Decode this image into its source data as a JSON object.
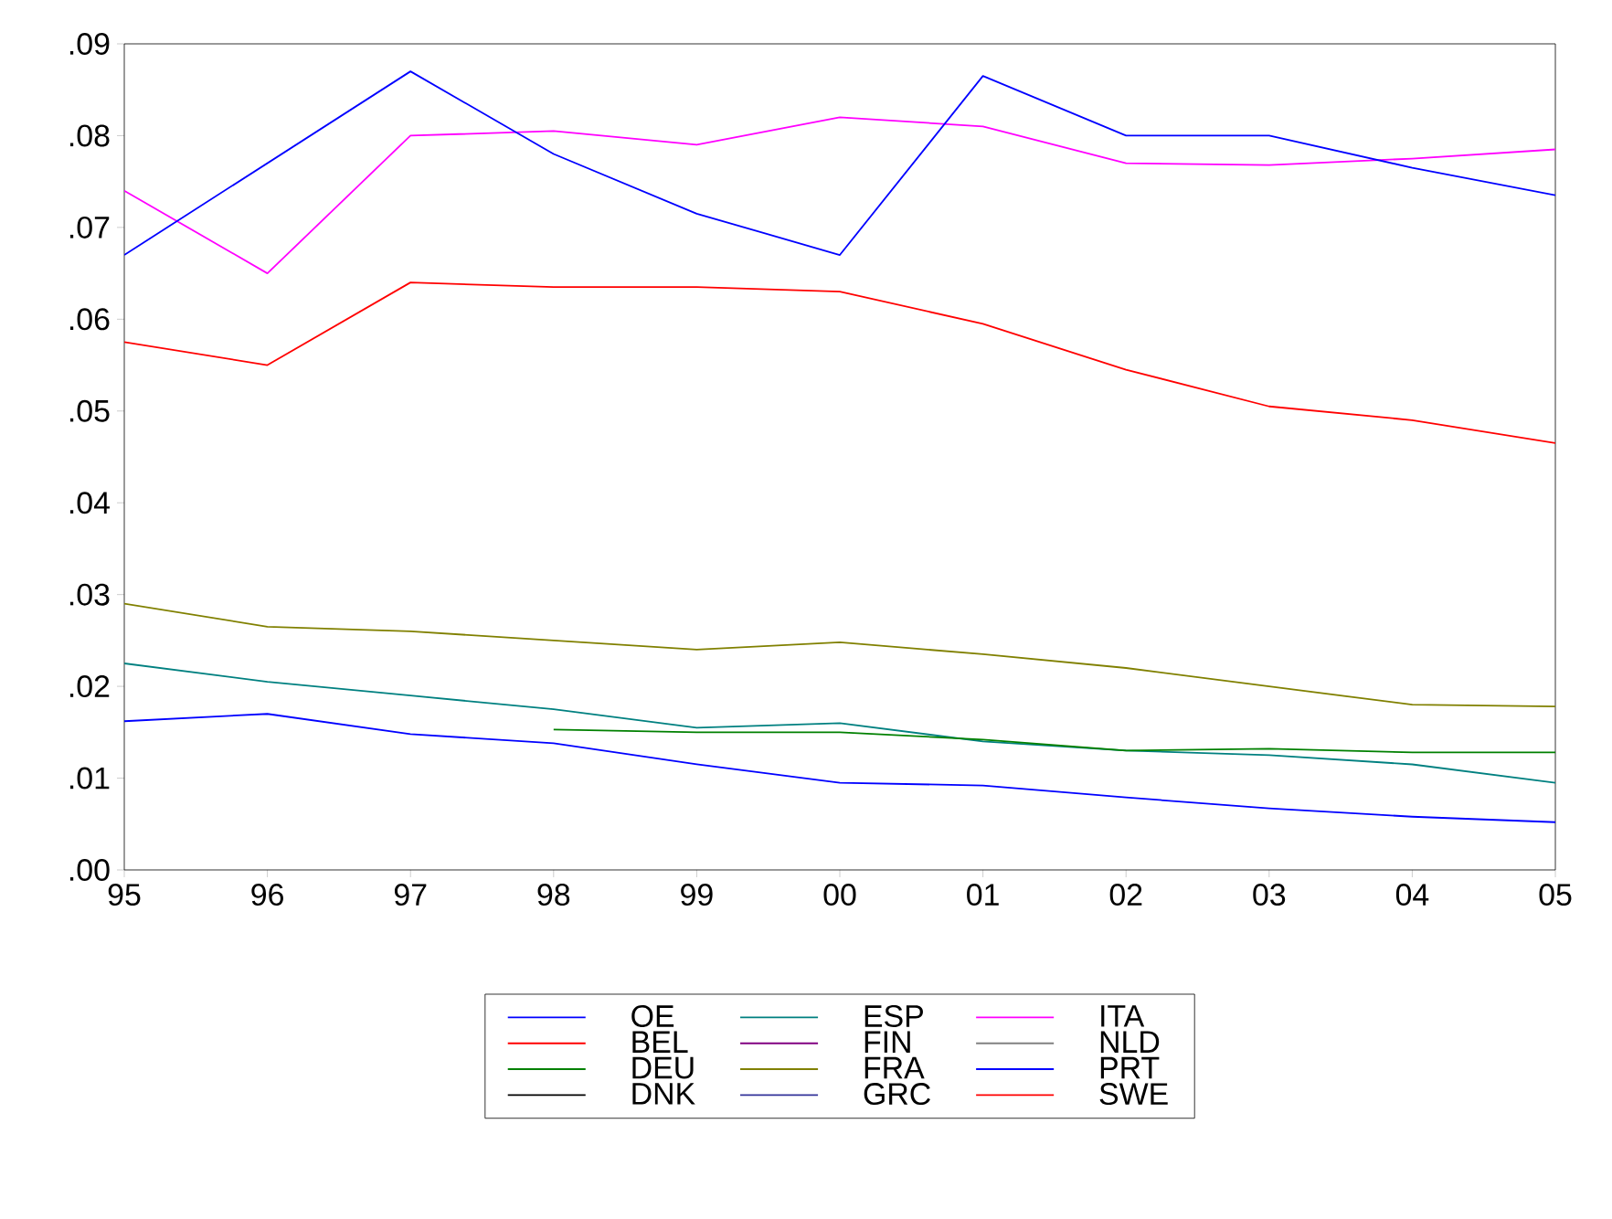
{
  "chart_data": {
    "type": "line",
    "categories": [
      "95",
      "96",
      "97",
      "98",
      "99",
      "00",
      "01",
      "02",
      "03",
      "04",
      "05"
    ],
    "ylim": [
      0,
      0.09
    ],
    "yticks": [
      {
        "value": 0,
        "label": ".00"
      },
      {
        "value": 0.01,
        "label": ".01"
      },
      {
        "value": 0.02,
        "label": ".02"
      },
      {
        "value": 0.03,
        "label": ".03"
      },
      {
        "value": 0.04,
        "label": ".04"
      },
      {
        "value": 0.05,
        "label": ".05"
      },
      {
        "value": 0.06,
        "label": ".06"
      },
      {
        "value": 0.07,
        "label": ".07"
      },
      {
        "value": 0.08,
        "label": ".08"
      },
      {
        "value": 0.09,
        "label": ".09"
      }
    ],
    "grid": false,
    "legend": "bottom",
    "marker": "none",
    "line_style": "solid",
    "series": [
      {
        "name": "OE",
        "color": "#0000ff",
        "values": [
          0.0162,
          0.017,
          0.0148,
          0.0138,
          0.0115,
          0.0095,
          0.0092,
          0.0079,
          0.0067,
          0.0058,
          0.0052
        ]
      },
      {
        "name": "ESP",
        "color": "#008080",
        "values": [
          0.0225,
          0.0205,
          0.019,
          0.0175,
          0.0155,
          0.016,
          0.014,
          0.013,
          0.0125,
          0.0115,
          0.0095
        ]
      },
      {
        "name": "ITA",
        "color": "#ff00ff",
        "values": [
          0.074,
          0.065,
          0.08,
          0.0805,
          0.079,
          0.082,
          0.081,
          0.077,
          0.0768,
          0.0775,
          0.0785
        ]
      },
      {
        "name": "BEL",
        "color": "#ff0000",
        "values": [
          0.0575,
          0.055,
          0.064,
          0.0635,
          0.0635,
          0.063,
          0.0595,
          0.0545,
          0.0505,
          0.049,
          0.0465
        ]
      },
      {
        "name": "FIN",
        "color": "#800080",
        "values": [
          null,
          null,
          null,
          null,
          null,
          null,
          null,
          null,
          null,
          null,
          null
        ]
      },
      {
        "name": "NLD",
        "color": "#808080",
        "values": [
          null,
          null,
          null,
          null,
          null,
          null,
          null,
          null,
          null,
          null,
          null
        ]
      },
      {
        "name": "DEU",
        "color": "#008000",
        "values": [
          null,
          null,
          null,
          0.0153,
          0.015,
          0.015,
          0.0142,
          0.013,
          0.0132,
          0.0128,
          0.0128
        ]
      },
      {
        "name": "FRA",
        "color": "#808000",
        "values": [
          0.029,
          0.0265,
          0.026,
          0.025,
          0.024,
          0.0248,
          0.0235,
          0.022,
          0.02,
          0.018,
          0.0178
        ]
      },
      {
        "name": "PRT",
        "color": "#0000ff",
        "values": [
          0.067,
          0.077,
          0.087,
          0.078,
          0.0715,
          0.067,
          0.0865,
          0.08,
          0.08,
          0.0765,
          0.0735
        ]
      },
      {
        "name": "DNK",
        "color": "#000000",
        "values": [
          null,
          null,
          null,
          null,
          null,
          null,
          null,
          null,
          null,
          null,
          null
        ]
      },
      {
        "name": "GRC",
        "color": "#333399",
        "values": [
          null,
          null,
          null,
          null,
          null,
          null,
          null,
          null,
          null,
          null,
          null
        ]
      },
      {
        "name": "SWE",
        "color": "#ff0000",
        "values": [
          null,
          null,
          null,
          null,
          null,
          null,
          null,
          null,
          null,
          null,
          null
        ]
      }
    ]
  }
}
